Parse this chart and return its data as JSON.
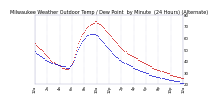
{
  "title": "Milwaukee Weather Outdoor Temp / Dew Point  by Minute  (24 Hours) (Alternate)",
  "bg_color": "#ffffff",
  "plot_bg_color": "#ffffff",
  "text_color": "#000000",
  "grid_color": "#aaaacc",
  "red_color": "#cc0000",
  "blue_color": "#0000cc",
  "ylim": [
    20,
    80
  ],
  "xlim": [
    0,
    1440
  ],
  "yticks": [
    20,
    30,
    40,
    50,
    60,
    70,
    80
  ],
  "ytick_labels": [
    "20",
    "30",
    "40",
    "50",
    "60",
    "70",
    "80"
  ],
  "title_fontsize": 3.5,
  "tick_fontsize": 2.8,
  "red_data": [
    [
      0,
      55
    ],
    [
      10,
      54
    ],
    [
      20,
      53
    ],
    [
      30,
      52
    ],
    [
      40,
      51
    ],
    [
      50,
      50
    ],
    [
      60,
      50
    ],
    [
      70,
      49
    ],
    [
      80,
      48
    ],
    [
      90,
      47
    ],
    [
      100,
      46
    ],
    [
      110,
      45
    ],
    [
      120,
      44
    ],
    [
      130,
      43
    ],
    [
      140,
      42
    ],
    [
      150,
      41
    ],
    [
      160,
      40
    ],
    [
      170,
      39
    ],
    [
      180,
      39
    ],
    [
      190,
      38
    ],
    [
      200,
      37
    ],
    [
      210,
      37
    ],
    [
      220,
      36
    ],
    [
      230,
      36
    ],
    [
      240,
      35
    ],
    [
      250,
      35
    ],
    [
      260,
      34
    ],
    [
      270,
      34
    ],
    [
      280,
      34
    ],
    [
      290,
      33
    ],
    [
      300,
      33
    ],
    [
      310,
      33
    ],
    [
      320,
      33
    ],
    [
      330,
      34
    ],
    [
      340,
      35
    ],
    [
      350,
      36
    ],
    [
      360,
      38
    ],
    [
      370,
      40
    ],
    [
      380,
      43
    ],
    [
      390,
      46
    ],
    [
      400,
      49
    ],
    [
      410,
      52
    ],
    [
      420,
      55
    ],
    [
      430,
      57
    ],
    [
      440,
      59
    ],
    [
      450,
      61
    ],
    [
      460,
      63
    ],
    [
      470,
      64
    ],
    [
      480,
      65
    ],
    [
      490,
      67
    ],
    [
      500,
      68
    ],
    [
      510,
      69
    ],
    [
      520,
      70
    ],
    [
      530,
      71
    ],
    [
      540,
      72
    ],
    [
      550,
      72
    ],
    [
      560,
      73
    ],
    [
      570,
      73
    ],
    [
      580,
      74
    ],
    [
      590,
      74
    ],
    [
      600,
      73
    ],
    [
      610,
      73
    ],
    [
      620,
      72
    ],
    [
      630,
      72
    ],
    [
      640,
      71
    ],
    [
      650,
      70
    ],
    [
      660,
      69
    ],
    [
      670,
      68
    ],
    [
      680,
      67
    ],
    [
      690,
      66
    ],
    [
      700,
      65
    ],
    [
      710,
      64
    ],
    [
      720,
      63
    ],
    [
      730,
      62
    ],
    [
      740,
      61
    ],
    [
      750,
      60
    ],
    [
      760,
      59
    ],
    [
      770,
      58
    ],
    [
      780,
      57
    ],
    [
      790,
      56
    ],
    [
      800,
      55
    ],
    [
      810,
      54
    ],
    [
      820,
      53
    ],
    [
      830,
      52
    ],
    [
      840,
      51
    ],
    [
      850,
      50
    ],
    [
      860,
      49
    ],
    [
      870,
      48
    ],
    [
      880,
      48
    ],
    [
      890,
      47
    ],
    [
      900,
      46
    ],
    [
      910,
      46
    ],
    [
      920,
      45
    ],
    [
      930,
      45
    ],
    [
      940,
      44
    ],
    [
      950,
      44
    ],
    [
      960,
      43
    ],
    [
      970,
      43
    ],
    [
      980,
      42
    ],
    [
      990,
      42
    ],
    [
      1000,
      41
    ],
    [
      1010,
      41
    ],
    [
      1020,
      40
    ],
    [
      1030,
      40
    ],
    [
      1040,
      39
    ],
    [
      1050,
      39
    ],
    [
      1060,
      38
    ],
    [
      1070,
      38
    ],
    [
      1080,
      37
    ],
    [
      1090,
      37
    ],
    [
      1100,
      36
    ],
    [
      1110,
      36
    ],
    [
      1120,
      35
    ],
    [
      1130,
      35
    ],
    [
      1140,
      34
    ],
    [
      1150,
      34
    ],
    [
      1160,
      33
    ],
    [
      1170,
      33
    ],
    [
      1180,
      33
    ],
    [
      1190,
      32
    ],
    [
      1200,
      32
    ],
    [
      1210,
      32
    ],
    [
      1220,
      31
    ],
    [
      1230,
      31
    ],
    [
      1240,
      31
    ],
    [
      1250,
      30
    ],
    [
      1260,
      30
    ],
    [
      1270,
      30
    ],
    [
      1280,
      29
    ],
    [
      1290,
      29
    ],
    [
      1300,
      29
    ],
    [
      1310,
      28
    ],
    [
      1320,
      28
    ],
    [
      1330,
      28
    ],
    [
      1340,
      27
    ],
    [
      1350,
      27
    ],
    [
      1360,
      27
    ],
    [
      1370,
      27
    ],
    [
      1380,
      26
    ],
    [
      1390,
      26
    ],
    [
      1400,
      26
    ],
    [
      1410,
      26
    ],
    [
      1420,
      25
    ],
    [
      1430,
      25
    ],
    [
      1440,
      25
    ]
  ],
  "blue_data": [
    [
      0,
      48
    ],
    [
      10,
      47
    ],
    [
      20,
      46
    ],
    [
      30,
      46
    ],
    [
      40,
      45
    ],
    [
      50,
      44
    ],
    [
      60,
      44
    ],
    [
      70,
      43
    ],
    [
      80,
      42
    ],
    [
      90,
      42
    ],
    [
      100,
      41
    ],
    [
      110,
      41
    ],
    [
      120,
      40
    ],
    [
      130,
      40
    ],
    [
      140,
      39
    ],
    [
      150,
      39
    ],
    [
      160,
      38
    ],
    [
      170,
      38
    ],
    [
      180,
      38
    ],
    [
      190,
      37
    ],
    [
      200,
      37
    ],
    [
      210,
      37
    ],
    [
      220,
      36
    ],
    [
      230,
      36
    ],
    [
      240,
      36
    ],
    [
      250,
      35
    ],
    [
      260,
      35
    ],
    [
      270,
      35
    ],
    [
      280,
      35
    ],
    [
      290,
      35
    ],
    [
      300,
      34
    ],
    [
      310,
      34
    ],
    [
      320,
      34
    ],
    [
      330,
      34
    ],
    [
      340,
      35
    ],
    [
      350,
      36
    ],
    [
      360,
      37
    ],
    [
      370,
      39
    ],
    [
      380,
      41
    ],
    [
      390,
      43
    ],
    [
      400,
      46
    ],
    [
      410,
      48
    ],
    [
      420,
      50
    ],
    [
      430,
      52
    ],
    [
      440,
      54
    ],
    [
      450,
      55
    ],
    [
      460,
      57
    ],
    [
      470,
      58
    ],
    [
      480,
      59
    ],
    [
      490,
      60
    ],
    [
      500,
      61
    ],
    [
      510,
      62
    ],
    [
      520,
      62
    ],
    [
      530,
      63
    ],
    [
      540,
      63
    ],
    [
      550,
      63
    ],
    [
      560,
      63
    ],
    [
      570,
      63
    ],
    [
      580,
      63
    ],
    [
      590,
      62
    ],
    [
      600,
      62
    ],
    [
      610,
      61
    ],
    [
      620,
      60
    ],
    [
      630,
      59
    ],
    [
      640,
      58
    ],
    [
      650,
      57
    ],
    [
      660,
      56
    ],
    [
      670,
      55
    ],
    [
      680,
      54
    ],
    [
      690,
      53
    ],
    [
      700,
      52
    ],
    [
      710,
      51
    ],
    [
      720,
      50
    ],
    [
      730,
      49
    ],
    [
      740,
      48
    ],
    [
      750,
      47
    ],
    [
      760,
      46
    ],
    [
      770,
      45
    ],
    [
      780,
      44
    ],
    [
      790,
      43
    ],
    [
      800,
      43
    ],
    [
      810,
      42
    ],
    [
      820,
      41
    ],
    [
      830,
      41
    ],
    [
      840,
      40
    ],
    [
      850,
      39
    ],
    [
      860,
      39
    ],
    [
      870,
      38
    ],
    [
      880,
      38
    ],
    [
      890,
      37
    ],
    [
      900,
      37
    ],
    [
      910,
      36
    ],
    [
      920,
      36
    ],
    [
      930,
      35
    ],
    [
      940,
      35
    ],
    [
      950,
      34
    ],
    [
      960,
      34
    ],
    [
      970,
      33
    ],
    [
      980,
      33
    ],
    [
      990,
      33
    ],
    [
      1000,
      32
    ],
    [
      1010,
      32
    ],
    [
      1020,
      31
    ],
    [
      1030,
      31
    ],
    [
      1040,
      31
    ],
    [
      1050,
      30
    ],
    [
      1060,
      30
    ],
    [
      1070,
      30
    ],
    [
      1080,
      29
    ],
    [
      1090,
      29
    ],
    [
      1100,
      29
    ],
    [
      1110,
      28
    ],
    [
      1120,
      28
    ],
    [
      1130,
      28
    ],
    [
      1140,
      27
    ],
    [
      1150,
      27
    ],
    [
      1160,
      27
    ],
    [
      1170,
      27
    ],
    [
      1180,
      26
    ],
    [
      1190,
      26
    ],
    [
      1200,
      26
    ],
    [
      1210,
      26
    ],
    [
      1220,
      25
    ],
    [
      1230,
      25
    ],
    [
      1240,
      25
    ],
    [
      1250,
      25
    ],
    [
      1260,
      24
    ],
    [
      1270,
      24
    ],
    [
      1280,
      24
    ],
    [
      1290,
      24
    ],
    [
      1300,
      23
    ],
    [
      1310,
      23
    ],
    [
      1320,
      23
    ],
    [
      1330,
      23
    ],
    [
      1340,
      23
    ],
    [
      1350,
      22
    ],
    [
      1360,
      22
    ],
    [
      1370,
      22
    ],
    [
      1380,
      22
    ],
    [
      1390,
      22
    ],
    [
      1400,
      22
    ],
    [
      1410,
      21
    ],
    [
      1420,
      21
    ],
    [
      1430,
      21
    ],
    [
      1440,
      21
    ]
  ],
  "xticks": [
    0,
    120,
    240,
    360,
    480,
    600,
    720,
    840,
    960,
    1080,
    1200,
    1320,
    1440
  ],
  "xtick_labels": [
    "12a",
    "2a",
    "4a",
    "6a",
    "8a",
    "10a",
    "12p",
    "2p",
    "4p",
    "6p",
    "8p",
    "10p",
    "12a"
  ]
}
